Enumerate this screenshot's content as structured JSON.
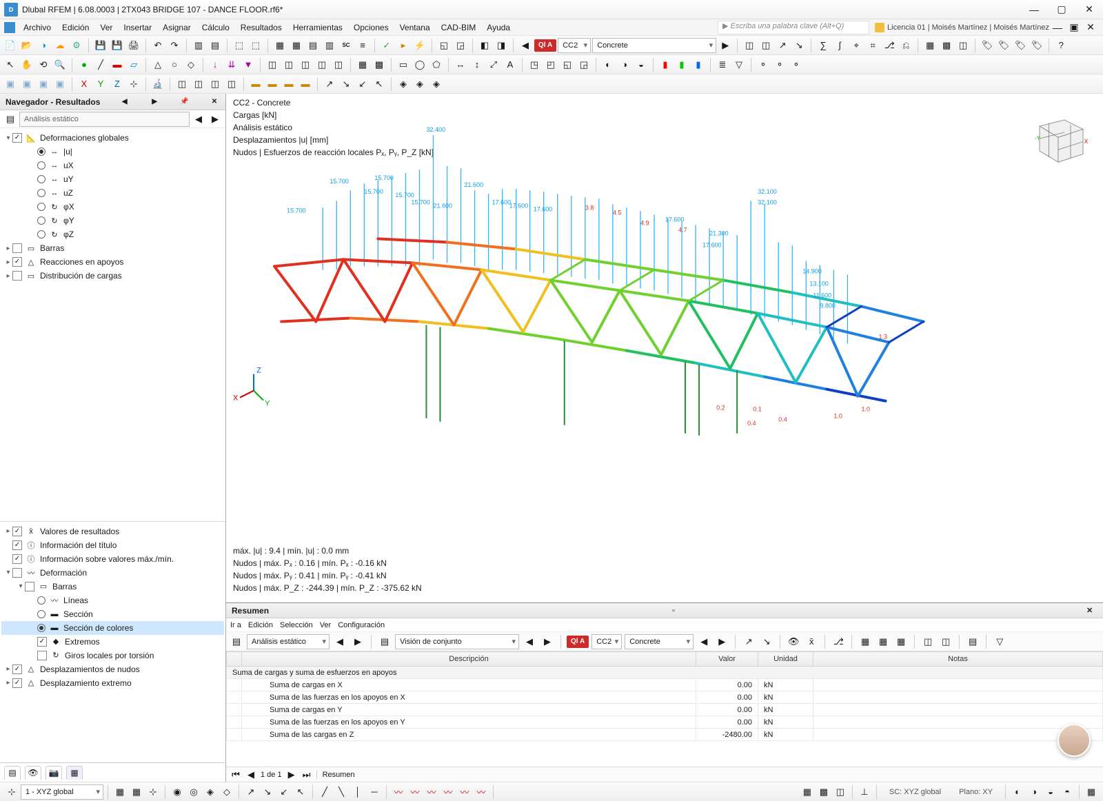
{
  "title": "Dlubal RFEM | 6.08.0003 | 2TX043 BRIDGE 107 - DANCE FLOOR.rf6*",
  "menus": [
    "Archivo",
    "Edición",
    "Ver",
    "Insertar",
    "Asignar",
    "Cálculo",
    "Resultados",
    "Herramientas",
    "Opciones",
    "Ventana",
    "CAD-BIM",
    "Ayuda"
  ],
  "searchPlaceholder": "Escriba una palabra clave (Alt+Q)",
  "license": "Licencia 01 | Moisés Martínez | Moisés Martínez",
  "tb1_combo_cc": "CC2",
  "tb1_combo_mat": "Concrete",
  "tb1_badgeA": "Ql A",
  "nav": {
    "title": "Navegador - Resultados",
    "combo": "Análisis estático",
    "tree1": [
      {
        "ind": 0,
        "tgl": "▾",
        "chk": "on",
        "ic": "📐",
        "label": "Deformaciones globales"
      },
      {
        "ind": 2,
        "rad": "on",
        "ic": "↔",
        "label": "|u|"
      },
      {
        "ind": 2,
        "rad": "off",
        "ic": "↔",
        "label": "uX"
      },
      {
        "ind": 2,
        "rad": "off",
        "ic": "↔",
        "label": "uY"
      },
      {
        "ind": 2,
        "rad": "off",
        "ic": "↔",
        "label": "uZ"
      },
      {
        "ind": 2,
        "rad": "off",
        "ic": "↻",
        "label": "φX"
      },
      {
        "ind": 2,
        "rad": "off",
        "ic": "↻",
        "label": "φY"
      },
      {
        "ind": 2,
        "rad": "off",
        "ic": "↻",
        "label": "φZ"
      },
      {
        "ind": 0,
        "tgl": "▸",
        "chk": "off",
        "ic": "▭",
        "label": "Barras"
      },
      {
        "ind": 0,
        "tgl": "▸",
        "chk": "on",
        "ic": "△",
        "label": "Reacciones en apoyos"
      },
      {
        "ind": 0,
        "tgl": "▸",
        "chk": "off",
        "ic": "▭",
        "label": "Distribución de cargas"
      }
    ],
    "tree2": [
      {
        "ind": 0,
        "tgl": "▸",
        "chk": "on",
        "ic": "x̄",
        "label": "Valores de resultados"
      },
      {
        "ind": 0,
        "tgl": "",
        "chk": "on",
        "ic": "ⓘ",
        "label": "Información del título"
      },
      {
        "ind": 0,
        "tgl": "",
        "chk": "on",
        "ic": "ⓘ",
        "label": "Información sobre valores máx./mín."
      },
      {
        "ind": 0,
        "tgl": "▾",
        "chk": "off",
        "ic": "〰",
        "label": "Deformación"
      },
      {
        "ind": 1,
        "tgl": "▾",
        "chk": "off",
        "ic": "▭",
        "label": "Barras"
      },
      {
        "ind": 2,
        "rad": "off",
        "ic": "〰",
        "label": "Líneas"
      },
      {
        "ind": 2,
        "rad": "off",
        "ic": "▬",
        "label": "Sección"
      },
      {
        "ind": 2,
        "rad": "on",
        "ic": "▬",
        "label": "Sección de colores",
        "sel": true
      },
      {
        "ind": 2,
        "chk": "on",
        "ic": "◆",
        "label": "Extremos"
      },
      {
        "ind": 2,
        "chk": "off",
        "ic": "↻",
        "label": "Giros locales por torsión"
      },
      {
        "ind": 0,
        "tgl": "▸",
        "chk": "on",
        "ic": "△",
        "label": "Desplazamientos de nudos"
      },
      {
        "ind": 0,
        "tgl": "▸",
        "chk": "on",
        "ic": "△",
        "label": "Desplazamiento extremo"
      }
    ]
  },
  "vp": {
    "info1": "CC2 - Concrete",
    "info2": "Cargas [kN]",
    "info3": "Análisis estático",
    "info4": "Desplazamientos |u| [mm]",
    "info5": "Nudos | Esfuerzos de reacción locales Pₓ, Pᵧ, P_Z [kN]",
    "stat1": "máx. |u| : 9.4 | mín. |u| : 0.0 mm",
    "stat2": "Nudos | máx. Pₓ : 0.16 | mín. Pₓ : -0.16 kN",
    "stat3": "Nudos | máx. Pᵧ : 0.41 | mín. Pᵧ : -0.41 kN",
    "stat4": "Nudos | máx. P_Z : -244.39 | mín. P_Z : -375.62 kN",
    "value_labels": [
      "32.400",
      "15.700",
      "15.700",
      "15.700",
      "15.700",
      "15.700",
      "15.700",
      "15.700",
      "21.600",
      "21.600",
      "21.600",
      "17.600",
      "17.600",
      "17.600",
      "17.600",
      "32.100",
      "32.100",
      "21.300",
      "17.600",
      "14.900",
      "13.100",
      "11.600",
      "9.800"
    ],
    "red_labels": [
      "3.8",
      "4.5",
      "4.9",
      "4.7",
      "1.3",
      "1.0",
      "1.0",
      "0.4",
      "0.4",
      "0.2",
      "0.1"
    ],
    "colors": [
      "#e03020",
      "#f07020",
      "#f0c020",
      "#70d030",
      "#20c060",
      "#20c0c0",
      "#2080e0",
      "#1040c0",
      "#101080"
    ],
    "bar_color": "#30b0ff"
  },
  "res": {
    "title": "Resumen",
    "menus": [
      "Ir a",
      "Edición",
      "Selección",
      "Ver",
      "Configuración"
    ],
    "combo1": "Análisis estático",
    "combo2": "Visión de conjunto",
    "combo_cc": "CC2",
    "combo_mat": "Concrete",
    "badge": "Ql A",
    "cols": [
      "",
      "Descripción",
      "Valor",
      "Unidad",
      "Notas"
    ],
    "section": "Suma de cargas y suma de esfuerzos en apoyos",
    "rows": [
      {
        "d": "Suma de cargas en X",
        "v": "0.00",
        "u": "kN"
      },
      {
        "d": "Suma de las fuerzas en los apoyos en X",
        "v": "0.00",
        "u": "kN"
      },
      {
        "d": "Suma de cargas en Y",
        "v": "0.00",
        "u": "kN"
      },
      {
        "d": "Suma de las fuerzas en los apoyos en Y",
        "v": "0.00",
        "u": "kN"
      },
      {
        "d": "Suma de las cargas en Z",
        "v": "-2480.00",
        "u": "kN"
      }
    ],
    "pager": "1 de 1",
    "tab": "Resumen"
  },
  "bb_combo": "1 - XYZ global",
  "status": {
    "sc": "SC: XYZ global",
    "plano": "Plano: XY"
  }
}
